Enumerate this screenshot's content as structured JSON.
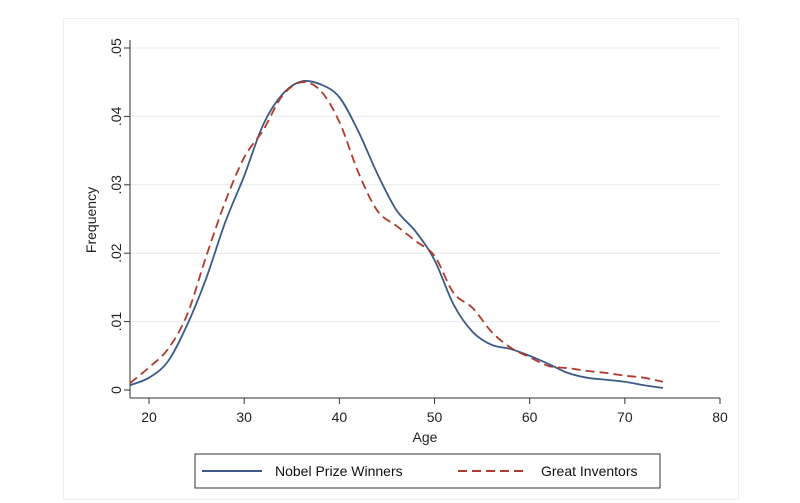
{
  "chart_data": {
    "type": "line",
    "title": "",
    "xlabel": "Age",
    "ylabel": "Frequency",
    "xlim": [
      18,
      80
    ],
    "ylim": [
      0,
      0.05
    ],
    "x_ticks": [
      20,
      30,
      40,
      50,
      60,
      70,
      80
    ],
    "x_tick_labels": [
      "20",
      "30",
      "40",
      "50",
      "60",
      "70",
      "80"
    ],
    "y_ticks": [
      0,
      0.01,
      0.02,
      0.03,
      0.04,
      0.05
    ],
    "y_tick_labels": [
      "0",
      ".01",
      ".02",
      ".03",
      ".04",
      ".05"
    ],
    "grid": "horizontal",
    "legend_position": "bottom",
    "series": [
      {
        "name": "Nobel Prize Winners",
        "color": "#3b5a86",
        "dash": "solid",
        "x": [
          18,
          20,
          22,
          24,
          26,
          28,
          30,
          32,
          34,
          36,
          38,
          40,
          42,
          44,
          46,
          48,
          50,
          52,
          54,
          56,
          58,
          60,
          62,
          64,
          66,
          68,
          70,
          72,
          74
        ],
        "y": [
          0.0007,
          0.0018,
          0.0042,
          0.0095,
          0.0163,
          0.0245,
          0.0313,
          0.0388,
          0.0432,
          0.0451,
          0.0447,
          0.0428,
          0.0378,
          0.0316,
          0.0263,
          0.0232,
          0.019,
          0.0125,
          0.0085,
          0.0066,
          0.006,
          0.005,
          0.0038,
          0.0025,
          0.0018,
          0.0015,
          0.0012,
          0.0007,
          0.0003
        ]
      },
      {
        "name": "Great Inventors",
        "color": "#b03a2e",
        "dash": "dashed",
        "x": [
          18,
          20,
          22,
          24,
          26,
          28,
          30,
          32,
          34,
          36,
          38,
          40,
          42,
          44,
          46,
          48,
          50,
          52,
          54,
          56,
          58,
          60,
          62,
          64,
          66,
          68,
          70,
          72,
          74
        ],
        "y": [
          0.001,
          0.0033,
          0.006,
          0.011,
          0.0195,
          0.0275,
          0.034,
          0.038,
          0.043,
          0.045,
          0.0438,
          0.0392,
          0.0318,
          0.0262,
          0.024,
          0.0218,
          0.0196,
          0.0142,
          0.012,
          0.0085,
          0.0062,
          0.0048,
          0.0035,
          0.0032,
          0.0028,
          0.0025,
          0.0021,
          0.0018,
          0.0012
        ]
      }
    ]
  }
}
